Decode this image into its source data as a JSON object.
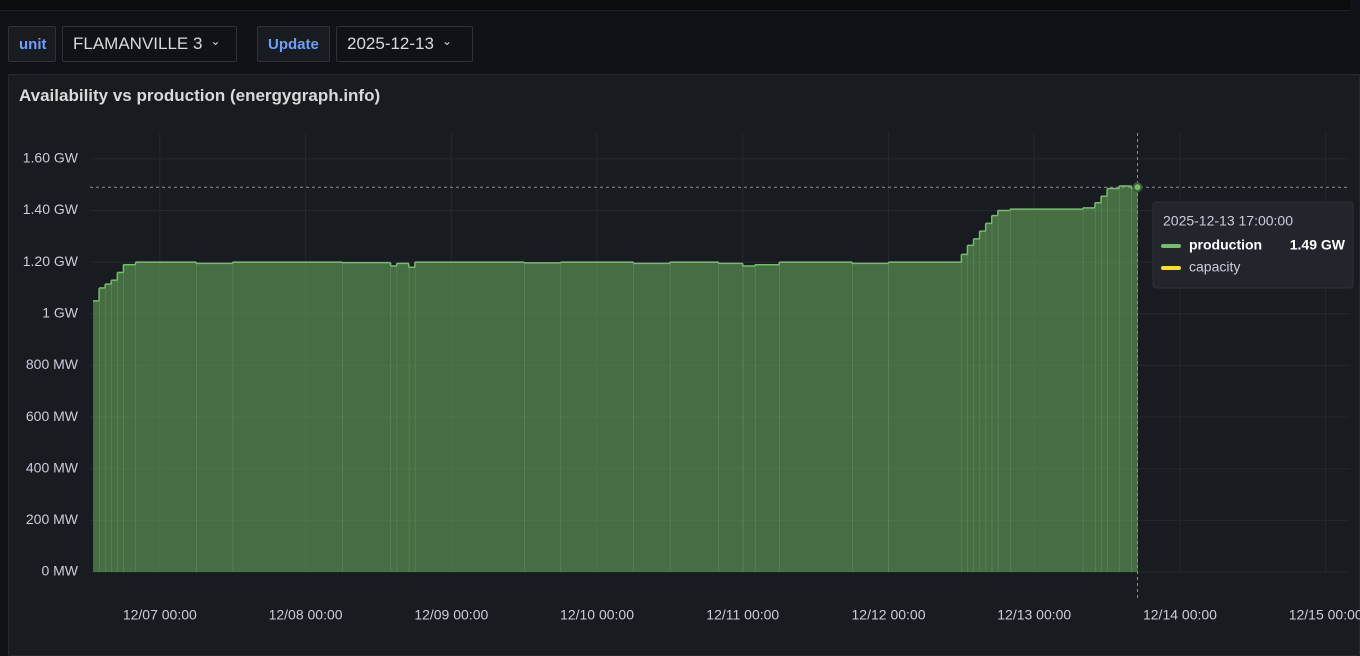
{
  "header": {
    "variable_label": "unit",
    "unit_value": "FLAMANVILLE 3",
    "update_label": "Update",
    "date_value": "2025-12-13"
  },
  "chart_data": {
    "type": "area",
    "title": "Availability vs production (energygraph.info)",
    "x": [
      "12/06 13:00",
      "12/06 14:00",
      "12/06 15:00",
      "12/06 16:00",
      "12/06 17:00",
      "12/06 18:00",
      "12/06 20:00",
      "12/07 06:00",
      "12/07 12:00",
      "12/08 06:00",
      "12/08 14:00",
      "12/08 15:00",
      "12/08 17:00",
      "12/08 18:00",
      "12/09 12:00",
      "12/09 18:00",
      "12/10 06:00",
      "12/10 12:00",
      "12/10 20:00",
      "12/11 00:00",
      "12/11 02:00",
      "12/11 06:00",
      "12/11 18:00",
      "12/12 00:00",
      "12/12 12:00",
      "12/12 13:00",
      "12/12 14:00",
      "12/12 15:00",
      "12/12 16:00",
      "12/12 17:00",
      "12/12 18:00",
      "12/12 20:00",
      "12/13 08:00",
      "12/13 10:00",
      "12/13 11:00",
      "12/13 12:00",
      "12/13 14:00",
      "12/13 16:00",
      "12/13 17:00"
    ],
    "series": [
      {
        "name": "production",
        "color": "#73bf69",
        "values": [
          1050,
          1100,
          1115,
          1130,
          1160,
          1190,
          1200,
          1195,
          1200,
          1198,
          1185,
          1195,
          1180,
          1200,
          1197,
          1200,
          1195,
          1200,
          1195,
          1185,
          1190,
          1200,
          1195,
          1200,
          1230,
          1265,
          1290,
          1320,
          1350,
          1380,
          1400,
          1405,
          1410,
          1430,
          1455,
          1485,
          1495,
          1485,
          1490
        ]
      },
      {
        "name": "capacity",
        "color": "#fade2a",
        "values": [
          null,
          null,
          null,
          null,
          null,
          null,
          null,
          null,
          null,
          null,
          null,
          null,
          null,
          null,
          null,
          null,
          null,
          null,
          null,
          null,
          null,
          null,
          null,
          null,
          null,
          null,
          null,
          null,
          null,
          null,
          null,
          null,
          null,
          null,
          null,
          null,
          null,
          null,
          null
        ]
      }
    ],
    "xlim": [
      "12/06 12:30",
      "12/15 04:00"
    ],
    "xticks": [
      "12/07 00:00",
      "12/08 00:00",
      "12/09 00:00",
      "12/10 00:00",
      "12/11 00:00",
      "12/12 00:00",
      "12/13 00:00",
      "12/14 00:00",
      "12/15 00:00"
    ],
    "ylim": [
      0,
      1700
    ],
    "yticks": [
      {
        "value": 0,
        "label": "0 MW"
      },
      {
        "value": 200,
        "label": "200 MW"
      },
      {
        "value": 400,
        "label": "400 MW"
      },
      {
        "value": 600,
        "label": "600 MW"
      },
      {
        "value": 800,
        "label": "800 MW"
      },
      {
        "value": 1000,
        "label": "1 GW"
      },
      {
        "value": 1200,
        "label": "1.20 GW"
      },
      {
        "value": 1400,
        "label": "1.40 GW"
      },
      {
        "value": 1600,
        "label": "1.60 GW"
      }
    ],
    "grid": true,
    "tooltip": {
      "time": "2025-12-13 17:00:00",
      "value_label": "1.49 GW"
    }
  }
}
